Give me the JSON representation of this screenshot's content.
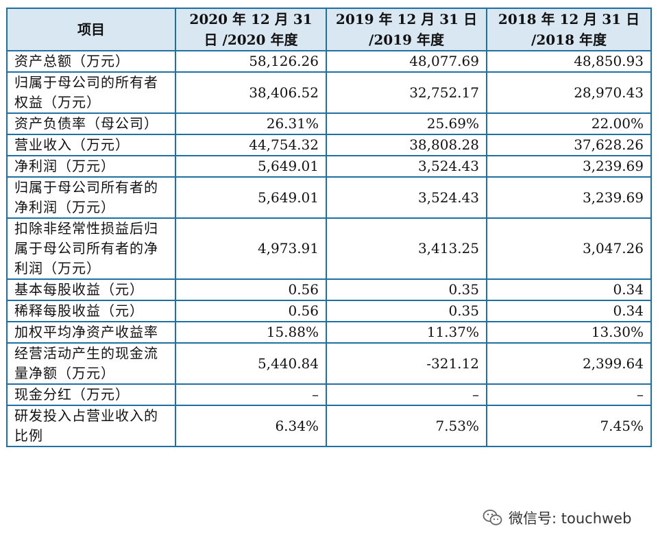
{
  "table": {
    "headers": [
      "项目",
      "2020 年 12 月 31 日 /2020 年度",
      "2019 年 12 月 31 日 /2019 年度",
      "2018 年 12 月 31 日 /2018 年度"
    ],
    "rows": [
      {
        "label": "资产总额（万元）",
        "values": [
          "58,126.26",
          "48,077.69",
          "48,850.93"
        ]
      },
      {
        "label": "归属于母公司的所有者权益（万元）",
        "values": [
          "38,406.52",
          "32,752.17",
          "28,970.43"
        ]
      },
      {
        "label": "资产负债率（母公司）",
        "values": [
          "26.31%",
          "25.69%",
          "22.00%"
        ]
      },
      {
        "label": "营业收入（万元）",
        "values": [
          "44,754.32",
          "38,808.28",
          "37,628.26"
        ]
      },
      {
        "label": "净利润（万元）",
        "values": [
          "5,649.01",
          "3,524.43",
          "3,239.69"
        ]
      },
      {
        "label": "归属于母公司所有者的净利润（万元）",
        "values": [
          "5,649.01",
          "3,524.43",
          "3,239.69"
        ]
      },
      {
        "label": "扣除非经常性损益后归属于母公司所有者的净利润（万元）",
        "values": [
          "4,973.91",
          "3,413.25",
          "3,047.26"
        ]
      },
      {
        "label": "基本每股收益（元）",
        "values": [
          "0.56",
          "0.35",
          "0.34"
        ]
      },
      {
        "label": "稀释每股收益（元）",
        "values": [
          "0.56",
          "0.35",
          "0.34"
        ]
      },
      {
        "label": "加权平均净资产收益率",
        "values": [
          "15.88%",
          "11.37%",
          "13.30%"
        ]
      },
      {
        "label": "经营活动产生的现金流量净额（万元）",
        "values": [
          "5,440.84",
          "-321.12",
          "2,399.64"
        ]
      },
      {
        "label": "现金分红（万元）",
        "values": [
          "–",
          "–",
          "–"
        ]
      },
      {
        "label": "研发投入占营业收入的比例",
        "values": [
          "6.34%",
          "7.53%",
          "7.45%"
        ]
      }
    ]
  },
  "watermark": {
    "icon": "wechat-icon",
    "text": "微信号: touchweb"
  }
}
